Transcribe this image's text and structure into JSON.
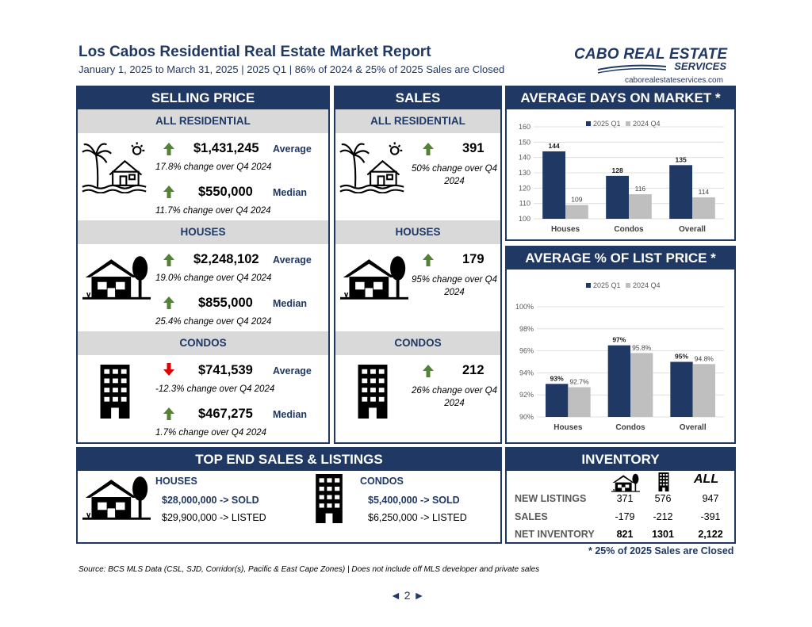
{
  "header": {
    "title": "Los Cabos Residential Real Estate Market Report",
    "subtitle": "January 1, 2025 to March 31, 2025 | 2025 Q1 | 86% of 2024 & 25% of 2025 Sales are Closed"
  },
  "logo": {
    "line1": "CABO REAL ESTATE",
    "line2": "SERVICES",
    "url": "caborealestateservices.com"
  },
  "colors": {
    "navy": "#1f3864",
    "gray": "#d9d9d9",
    "up": "#548235",
    "down": "#e00000",
    "bar_2024": "#bfbfbf"
  },
  "selling_price": {
    "title": "SELLING PRICE",
    "all": {
      "label": "ALL RESIDENTIAL",
      "avg": "$1,431,245",
      "avg_tag": "Average",
      "avg_chg": "17.8% change over Q4 2024",
      "med": "$550,000",
      "med_tag": "Median",
      "med_chg": "11.7% change over Q4 2024"
    },
    "houses": {
      "label": "HOUSES",
      "avg": "$2,248,102",
      "avg_tag": "Average",
      "avg_chg": "19.0% change over Q4 2024",
      "med": "$855,000",
      "med_tag": "Median",
      "med_chg": "25.4% change over Q4 2024"
    },
    "condos": {
      "label": "CONDOS",
      "avg": "$741,539",
      "avg_tag": "Average",
      "avg_chg": "-12.3% change over Q4 2024",
      "med": "$467,275",
      "med_tag": "Median",
      "med_chg": "1.7% change over Q4 2024"
    }
  },
  "sales": {
    "title": "SALES",
    "all": {
      "label": "ALL RESIDENTIAL",
      "value": "391",
      "chg1": "50% change over Q4",
      "chg2": "2024"
    },
    "houses": {
      "label": "HOUSES",
      "value": "179",
      "chg1": "95% change over Q4",
      "chg2": "2024"
    },
    "condos": {
      "label": "CONDOS",
      "value": "212",
      "chg1": "26% change over Q4",
      "chg2": "2024"
    }
  },
  "dom": {
    "title": "AVERAGE DAYS ON MARKET *"
  },
  "lp": {
    "title": "AVERAGE % OF LIST PRICE *"
  },
  "chart_data": [
    {
      "type": "bar",
      "title": "AVERAGE DAYS ON MARKET *",
      "categories": [
        "Houses",
        "Condos",
        "Overall"
      ],
      "series": [
        {
          "name": "2025 Q1",
          "values": [
            144,
            128,
            135
          ],
          "labels": [
            "144",
            "128",
            "135"
          ]
        },
        {
          "name": "2024 Q4",
          "values": [
            109,
            116,
            114
          ],
          "labels": [
            "109",
            "116",
            "114"
          ]
        }
      ],
      "ylim": [
        100,
        160
      ],
      "yticks": [
        "100",
        "110",
        "120",
        "130",
        "140",
        "150",
        "160"
      ],
      "legend": "top",
      "grid": true
    },
    {
      "type": "bar",
      "title": "AVERAGE % OF LIST PRICE *",
      "categories": [
        "Houses",
        "Condos",
        "Overall"
      ],
      "series": [
        {
          "name": "2025 Q1",
          "values": [
            93,
            96.5,
            95
          ],
          "labels": [
            "93%",
            "97%",
            "95%"
          ]
        },
        {
          "name": "2024 Q4",
          "values": [
            92.7,
            95.8,
            94.8
          ],
          "labels": [
            "92.7%",
            "95.8%",
            "94.8%"
          ]
        }
      ],
      "ylim": [
        90,
        100
      ],
      "yticks": [
        "90%",
        "92%",
        "94%",
        "96%",
        "98%",
        "100%"
      ],
      "legend": "top",
      "grid": true
    }
  ],
  "top_end": {
    "title": "TOP END SALES & LISTINGS",
    "houses": {
      "label": "HOUSES",
      "sold": "$28,000,000 -> SOLD",
      "listed": "$29,900,000 -> LISTED"
    },
    "condos": {
      "label": "CONDOS",
      "sold": "$5,400,000 -> SOLD",
      "listed": "$6,250,000 -> LISTED"
    }
  },
  "inventory": {
    "title": "INVENTORY",
    "all_label": "ALL",
    "rows": [
      {
        "label": "NEW LISTINGS",
        "houses": "371",
        "condos": "576",
        "all": "947"
      },
      {
        "label": "SALES",
        "houses": "-179",
        "condos": "-212",
        "all": "-391"
      },
      {
        "label": "NET INVENTORY",
        "houses": "821",
        "condos": "1301",
        "all": "2,122"
      }
    ],
    "note": "* 25% of 2025 Sales are Closed"
  },
  "footer": {
    "source": "Source:  BCS MLS Data (CSL, SJD, Corridor(s), Pacific & East Cape Zones) | Does not include off MLS developer and private sales",
    "page": "2"
  }
}
